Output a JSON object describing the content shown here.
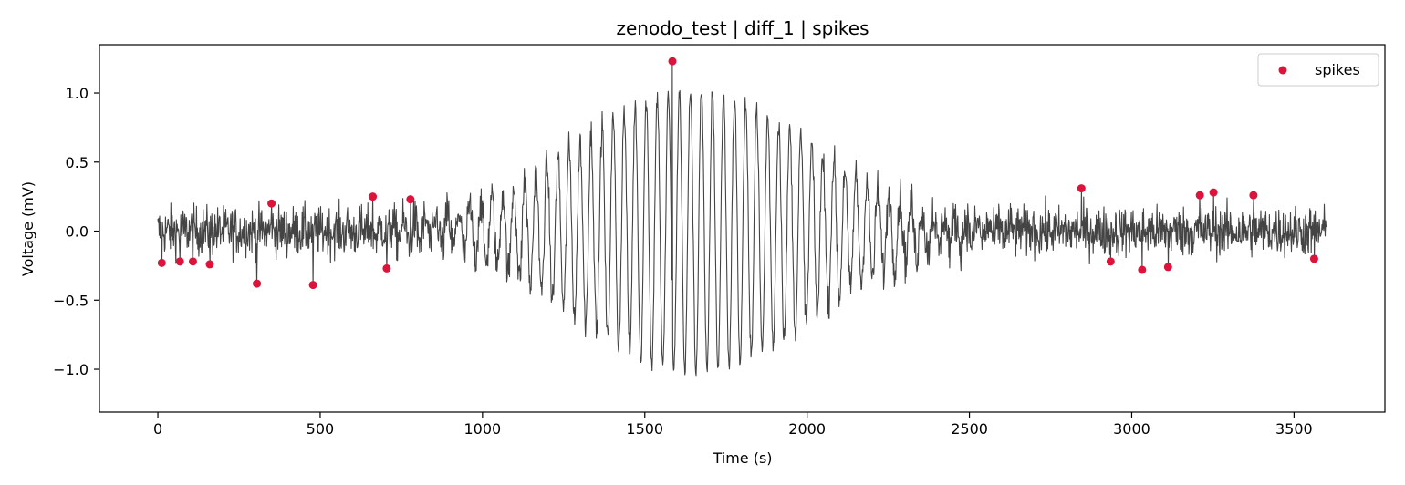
{
  "chart_data": {
    "type": "line",
    "title": "zenodo_test | diff_1 | spikes",
    "xlabel": "Time (s)",
    "ylabel": "Voltage (mV)",
    "xlim": [
      -180,
      3780
    ],
    "ylim": [
      -1.31,
      1.35
    ],
    "x_ticks": [
      0,
      500,
      1000,
      1500,
      2000,
      2500,
      3000,
      3500
    ],
    "y_ticks": [
      -1.0,
      -0.5,
      0.0,
      0.5,
      1.0
    ],
    "x_tick_labels": [
      "0",
      "500",
      "1000",
      "1500",
      "2000",
      "2500",
      "3000",
      "3500"
    ],
    "y_tick_labels": [
      "−1.0",
      "−0.5",
      "0.0",
      "0.5",
      "1.0"
    ],
    "grid": false,
    "legend_position": "top-right",
    "trace": {
      "color": "#444444",
      "x_start": 0,
      "x_end": 3600,
      "noise_amplitude": 0.09,
      "oscillation_center": 1650,
      "oscillation_width": 520,
      "oscillation_amplitude": 1.02,
      "oscillation_period": 34
    },
    "series": [
      {
        "name": "spikes",
        "color": "#dc143c",
        "x": [
          12,
          68,
          108,
          160,
          305,
          350,
          478,
          662,
          705,
          778,
          1585,
          2845,
          2935,
          3032,
          3112,
          3210,
          3252,
          3375,
          3562
        ],
        "y": [
          -0.23,
          -0.22,
          -0.22,
          -0.24,
          -0.38,
          0.2,
          -0.39,
          0.25,
          -0.27,
          0.23,
          1.23,
          0.31,
          -0.22,
          -0.28,
          -0.26,
          0.26,
          0.28,
          0.26,
          -0.2
        ]
      }
    ]
  }
}
